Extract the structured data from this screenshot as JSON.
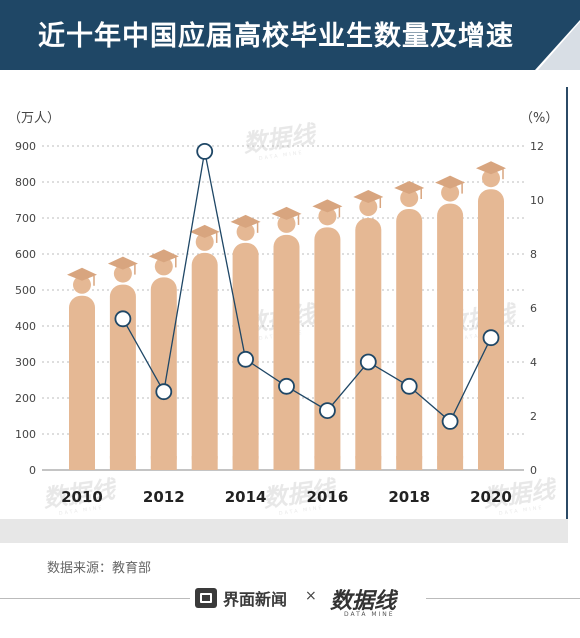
{
  "header": {
    "title": "近十年中国应届高校毕业生数量及增速",
    "bg_color": "#1f4766"
  },
  "chart_data": {
    "type": "bar",
    "categories": [
      "2010",
      "2011",
      "2012",
      "2013",
      "2014",
      "2015",
      "2016",
      "2017",
      "2018",
      "2019",
      "2020"
    ],
    "x_tick_labels": [
      "2010",
      "2012",
      "2014",
      "2016",
      "2018",
      "2020"
    ],
    "series": [
      {
        "values": [
          484,
          515,
          535,
          603,
          631,
          653,
          674,
          700,
          725,
          740,
          780
        ],
        "color": "#e5b894",
        "axis": "left"
      },
      {
        "values": [
          null,
          5.6,
          2.9,
          11.8,
          4.1,
          3.1,
          2.2,
          4.0,
          3.1,
          1.8,
          4.9
        ],
        "color": "#1f4766",
        "axis": "right",
        "marker": "open-circle"
      }
    ],
    "left_axis": {
      "unit_label": "（万人）",
      "ylim": [
        0,
        900
      ],
      "ticks": [
        "0",
        "100",
        "200",
        "300",
        "400",
        "500",
        "600",
        "700",
        "800",
        "900"
      ]
    },
    "right_axis": {
      "unit_label": "（%）",
      "ylim": [
        0,
        12
      ],
      "ticks": [
        "0",
        "2",
        "4",
        "6",
        "8",
        "10",
        "12"
      ]
    },
    "grid": true,
    "legend": "none"
  },
  "watermark": {
    "text": "数据线",
    "subtext": "DATA MINE"
  },
  "source": "数据来源：教育部",
  "footer": {
    "brand1": "界面新闻",
    "times": "×",
    "brand2": "数据线",
    "brand2_sub": "DATA MINE"
  }
}
